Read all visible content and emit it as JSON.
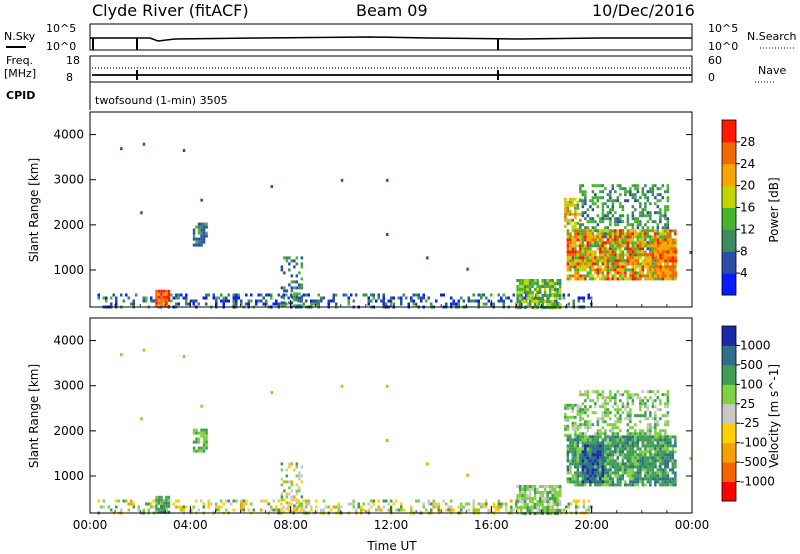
{
  "header": {
    "station": "Clyde River (fitACF)",
    "beam": "Beam 09",
    "date": "10/Dec/2016"
  },
  "strip_nsky": {
    "label": "N.Sky",
    "right_label": "N.Search",
    "left_ticks": [
      "10^5",
      "10^0"
    ],
    "right_ticks": [
      "10^5",
      "10^0"
    ]
  },
  "strip_freq": {
    "label_line1": "Freq.",
    "label_line2": "[MHz]",
    "right_label": "Nave",
    "left_ticks": [
      "18",
      "8"
    ],
    "right_ticks": [
      "60",
      "0"
    ]
  },
  "cpid": {
    "label": "CPID",
    "program": "twofsound (1-min) 3505"
  },
  "colors": {
    "power": [
      "#0a1cff",
      "#2a4fa8",
      "#3d8a5c",
      "#46b52e",
      "#c4d400",
      "#f7a600",
      "#f06a00",
      "#ff1a00"
    ],
    "velocity": [
      "#ff0000",
      "#f26500",
      "#f5a200",
      "#ffd000",
      "#c8c8c8",
      "#7fd140",
      "#3e9c55",
      "#2e6f8a",
      "#1a2aa8"
    ]
  },
  "chart_data": [
    {
      "type": "heatmap",
      "parameter": "Power",
      "ylabel": "Slant Range [km]",
      "xlim_hours": [
        0,
        24
      ],
      "ylim_km": [
        180,
        4500
      ],
      "y_ticks": [
        1000,
        2000,
        3000,
        4000
      ],
      "colorbar": {
        "label": "Power [dB]",
        "range": [
          0,
          32
        ],
        "ticks": [
          4,
          8,
          12,
          16,
          20,
          24,
          28
        ]
      },
      "regions": [
        {
          "t": [
            0.3,
            20.0
          ],
          "r": [
            180,
            480
          ],
          "v": [
            0,
            14
          ],
          "density": 0.35
        },
        {
          "t": [
            2.6,
            3.1
          ],
          "r": [
            180,
            560
          ],
          "v": [
            22,
            32
          ],
          "density": 0.95
        },
        {
          "t": [
            7.6,
            8.4
          ],
          "r": [
            180,
            1300
          ],
          "v": [
            4,
            16
          ],
          "density": 0.35
        },
        {
          "t": [
            17.0,
            18.7
          ],
          "r": [
            200,
            800
          ],
          "v": [
            8,
            20
          ],
          "density": 0.8
        },
        {
          "t": [
            4.1,
            4.6
          ],
          "r": [
            1550,
            2050
          ],
          "v": [
            4,
            14
          ],
          "density": 0.7
        },
        {
          "t": [
            18.9,
            19.5
          ],
          "r": [
            1900,
            2600
          ],
          "v": [
            10,
            26
          ],
          "density": 0.65
        },
        {
          "t": [
            19.5,
            23.0
          ],
          "r": [
            1200,
            2900
          ],
          "v": [
            6,
            16
          ],
          "density": 0.45
        },
        {
          "t": [
            19.0,
            23.3
          ],
          "r": [
            800,
            1900
          ],
          "v": [
            12,
            30
          ],
          "density": 0.85
        },
        {
          "t": [
            22.5,
            23.3
          ],
          "r": [
            900,
            1700
          ],
          "v": [
            20,
            30
          ],
          "density": 0.9
        }
      ],
      "spots": [
        [
          1.2,
          3720
        ],
        [
          2.1,
          3820
        ],
        [
          3.7,
          3680
        ],
        [
          2.0,
          2300
        ],
        [
          4.4,
          2580
        ],
        [
          7.2,
          2880
        ],
        [
          10.0,
          3020
        ],
        [
          11.8,
          3020
        ],
        [
          11.8,
          1820
        ],
        [
          13.4,
          1300
        ],
        [
          15.0,
          1050
        ],
        [
          23.9,
          1420
        ]
      ]
    },
    {
      "type": "heatmap",
      "parameter": "Velocity",
      "xlabel": "Time UT",
      "ylabel": "Slant Range [km]",
      "xlim_hours": [
        0,
        24
      ],
      "ylim_km": [
        180,
        4500
      ],
      "y_ticks": [
        1000,
        2000,
        3000,
        4000
      ],
      "x_tick_labels": [
        "00:00",
        "04:00",
        "08:00",
        "12:00",
        "16:00",
        "20:00",
        "00:00"
      ],
      "colorbar": {
        "label": "Velocity [m s^-1]",
        "ticks": [
          "-1000",
          "-500",
          "-100",
          "-25",
          "25",
          "100",
          "500",
          "1000"
        ]
      },
      "regions": [
        {
          "t": [
            0.3,
            20.0
          ],
          "r": [
            180,
            480
          ],
          "v": [
            2,
            6
          ],
          "density": 0.35
        },
        {
          "t": [
            2.6,
            3.1
          ],
          "r": [
            180,
            560
          ],
          "v": [
            5,
            7
          ],
          "density": 0.9
        },
        {
          "t": [
            7.6,
            8.4
          ],
          "r": [
            180,
            1300
          ],
          "v": [
            2,
            6
          ],
          "density": 0.35
        },
        {
          "t": [
            17.0,
            18.7
          ],
          "r": [
            200,
            800
          ],
          "v": [
            4,
            6
          ],
          "density": 0.8
        },
        {
          "t": [
            4.1,
            4.6
          ],
          "r": [
            1550,
            2050
          ],
          "v": [
            5,
            6
          ],
          "density": 0.7
        },
        {
          "t": [
            18.9,
            19.5
          ],
          "r": [
            1900,
            2600
          ],
          "v": [
            4,
            6
          ],
          "density": 0.65
        },
        {
          "t": [
            19.5,
            23.0
          ],
          "r": [
            1200,
            2900
          ],
          "v": [
            4,
            6
          ],
          "density": 0.45
        },
        {
          "t": [
            19.0,
            23.3
          ],
          "r": [
            800,
            1900
          ],
          "v": [
            5,
            7
          ],
          "density": 0.85
        },
        {
          "t": [
            19.6,
            20.4
          ],
          "r": [
            900,
            1700
          ],
          "v": [
            7,
            8
          ],
          "density": 0.8
        }
      ],
      "spots": [
        [
          1.2,
          3720
        ],
        [
          2.1,
          3820
        ],
        [
          3.7,
          3680
        ],
        [
          2.0,
          2300
        ],
        [
          4.4,
          2580
        ],
        [
          7.2,
          2880
        ],
        [
          10.0,
          3020
        ],
        [
          11.8,
          3020
        ],
        [
          11.8,
          1820
        ],
        [
          13.4,
          1300
        ],
        [
          15.0,
          1050
        ],
        [
          23.9,
          1420
        ]
      ]
    }
  ]
}
